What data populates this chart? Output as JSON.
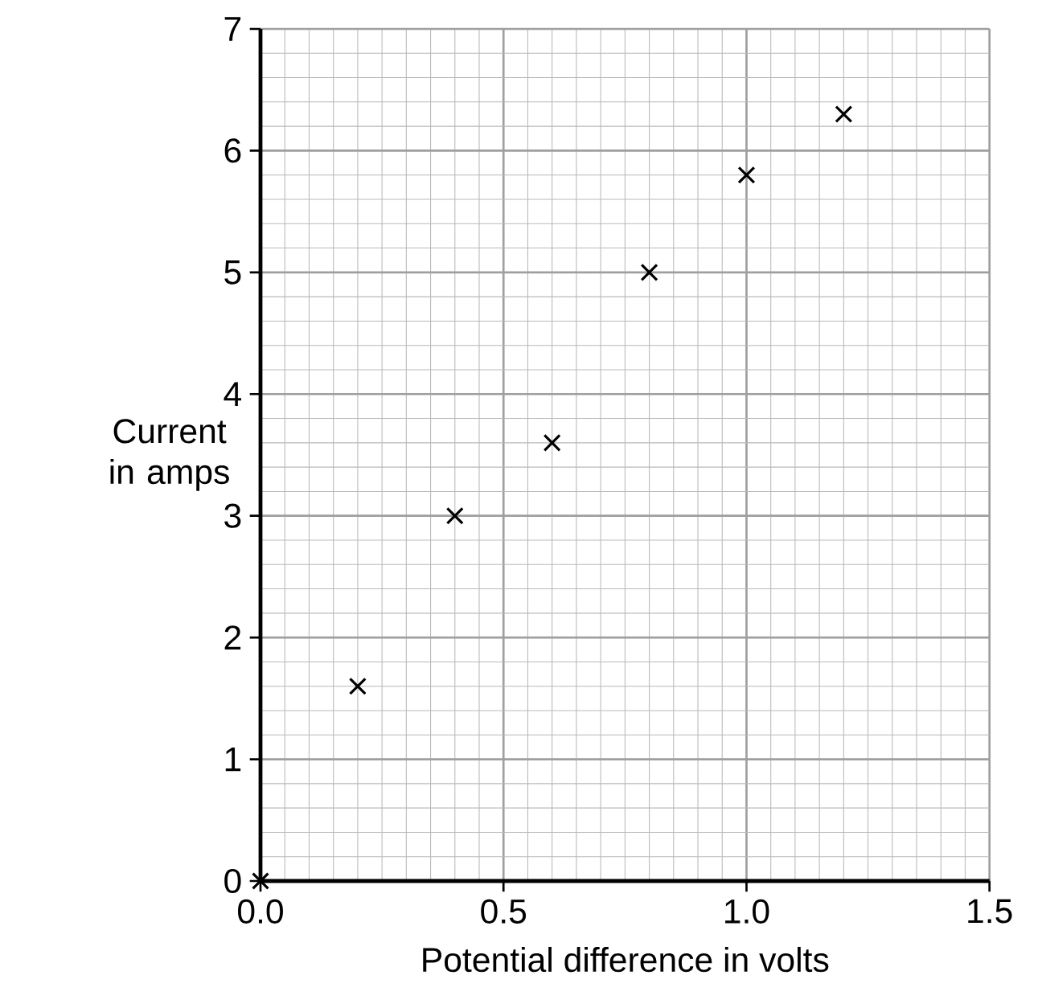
{
  "chart_data": {
    "type": "scatter",
    "xlabel": "Potential difference in volts",
    "ylabel": "Current in amps",
    "x": [
      0.0,
      0.2,
      0.4,
      0.6,
      0.8,
      1.0,
      1.2
    ],
    "series": [
      {
        "color": "#000000",
        "values": [
          0.0,
          1.6,
          3.0,
          3.6,
          5.0,
          5.8,
          6.3
        ]
      }
    ],
    "xlim": [
      0,
      1.5
    ],
    "ylim": [
      0,
      7
    ],
    "xticks": [
      {
        "value": 0,
        "label": "0.0"
      },
      {
        "value": 0.5,
        "label": "0.5"
      },
      {
        "value": 1.0,
        "label": "1.0"
      },
      {
        "value": 1.5,
        "label": "1.5"
      }
    ],
    "yticks": [
      0,
      1,
      2,
      3,
      4,
      5,
      6,
      7
    ],
    "grid": true,
    "marker": "cross"
  }
}
